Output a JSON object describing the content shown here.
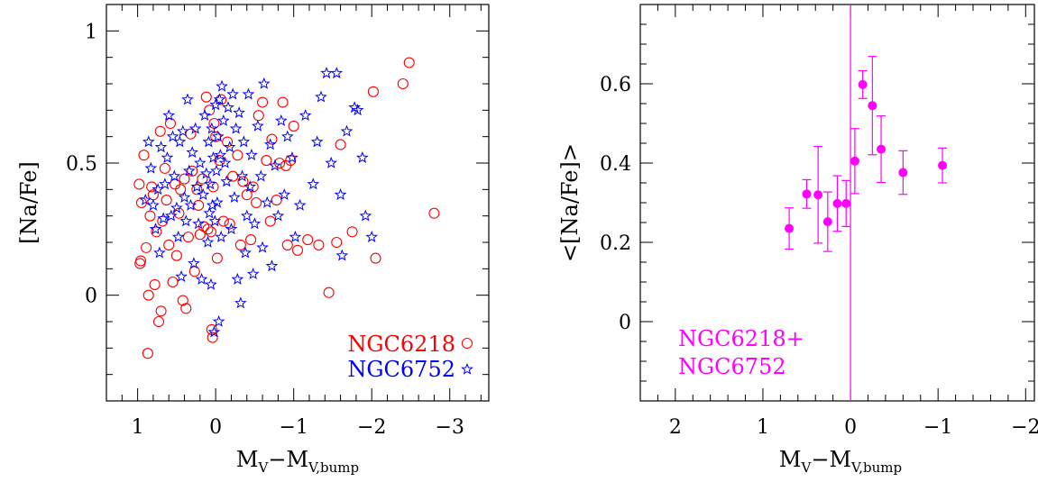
{
  "chart_data": [
    {
      "type": "scatter",
      "xlabel": {
        "main": "M",
        "main_sub": "V",
        "dash": "−M",
        "second_sub": "V,bump"
      },
      "ylabel": "[Na/Fe]",
      "xlim": [
        1.4,
        -3.5
      ],
      "ylim": [
        -0.4,
        1.1
      ],
      "xticks": [
        1,
        0,
        -1,
        -2,
        -3
      ],
      "xtick_labels": [
        "1",
        "0",
        "−1",
        "−2",
        "−3"
      ],
      "yticks": [
        0,
        0.5,
        1
      ],
      "ytick_labels": [
        "0",
        "0.5",
        "1"
      ],
      "legend": [
        {
          "label": "NGC6218",
          "marker": "circle",
          "color": "#ff0000"
        },
        {
          "label": "NGC6752",
          "marker": "star",
          "color": "#0000ff"
        }
      ],
      "series": [
        {
          "name": "NGC6218",
          "marker": "circle",
          "color": "#ff0000",
          "points": [
            [
              0.96,
              0.13
            ],
            [
              0.97,
              0.12
            ],
            [
              0.98,
              0.42
            ],
            [
              0.95,
              0.35
            ],
            [
              0.92,
              0.53
            ],
            [
              0.89,
              0.18
            ],
            [
              0.87,
              -0.22
            ],
            [
              0.86,
              0.0
            ],
            [
              0.84,
              0.3
            ],
            [
              0.82,
              0.41
            ],
            [
              0.8,
              0.38
            ],
            [
              0.78,
              0.04
            ],
            [
              0.76,
              0.24
            ],
            [
              0.73,
              -0.1
            ],
            [
              0.71,
              0.62
            ],
            [
              0.7,
              -0.06
            ],
            [
              0.68,
              0.28
            ],
            [
              0.65,
              0.48
            ],
            [
              0.63,
              0.36
            ],
            [
              0.6,
              0.19
            ],
            [
              0.58,
              0.65
            ],
            [
              0.55,
              0.05
            ],
            [
              0.52,
              0.42
            ],
            [
              0.5,
              0.15
            ],
            [
              0.47,
              0.31
            ],
            [
              0.45,
              0.4
            ],
            [
              0.42,
              -0.02
            ],
            [
              0.4,
              0.44
            ],
            [
              0.38,
              -0.05
            ],
            [
              0.35,
              0.22
            ],
            [
              0.32,
              0.61
            ],
            [
              0.3,
              0.47
            ],
            [
              0.27,
              0.09
            ],
            [
              0.24,
              0.4
            ],
            [
              0.22,
              0.34
            ],
            [
              0.2,
              0.23
            ],
            [
              0.17,
              0.44
            ],
            [
              0.15,
              0.26
            ],
            [
              0.12,
              0.75
            ],
            [
              0.1,
              0.25
            ],
            [
              0.08,
              0.7
            ],
            [
              0.06,
              0.24
            ],
            [
              0.05,
              -0.13
            ],
            [
              0.04,
              -0.16
            ],
            [
              0.03,
              0.41
            ],
            [
              0.02,
              0.65
            ],
            [
              0.0,
              0.6
            ],
            [
              -0.02,
              0.14
            ],
            [
              -0.05,
              0.51
            ],
            [
              -0.07,
              0.74
            ],
            [
              -0.1,
              0.28
            ],
            [
              -0.15,
              0.58
            ],
            [
              -0.18,
              0.27
            ],
            [
              -0.22,
              0.45
            ],
            [
              -0.28,
              0.53
            ],
            [
              -0.32,
              0.19
            ],
            [
              -0.35,
              0.43
            ],
            [
              -0.4,
              0.38
            ],
            [
              -0.45,
              0.21
            ],
            [
              -0.48,
              0.41
            ],
            [
              -0.52,
              0.35
            ],
            [
              -0.55,
              0.68
            ],
            [
              -0.6,
              0.73
            ],
            [
              -0.65,
              0.51
            ],
            [
              -0.7,
              0.28
            ],
            [
              -0.72,
              0.59
            ],
            [
              -0.78,
              0.36
            ],
            [
              -0.82,
              0.5
            ],
            [
              -0.86,
              0.73
            ],
            [
              -0.9,
              0.49
            ],
            [
              -0.92,
              0.19
            ],
            [
              -0.96,
              0.51
            ],
            [
              -1.0,
              0.64
            ],
            [
              -1.05,
              0.17
            ],
            [
              -1.18,
              0.21
            ],
            [
              -1.32,
              0.19
            ],
            [
              -1.45,
              0.01
            ],
            [
              -1.55,
              0.2
            ],
            [
              -1.6,
              0.57
            ],
            [
              -1.75,
              0.24
            ],
            [
              -2.02,
              0.77
            ],
            [
              -2.05,
              0.14
            ],
            [
              -2.4,
              0.8
            ],
            [
              -2.48,
              0.88
            ],
            [
              -2.8,
              0.31
            ]
          ]
        },
        {
          "name": "NGC6752",
          "marker": "star",
          "color": "#0000ff",
          "points": [
            [
              0.9,
              0.36
            ],
            [
              0.86,
              0.58
            ],
            [
              0.83,
              0.48
            ],
            [
              0.8,
              0.34
            ],
            [
              0.77,
              0.25
            ],
            [
              0.74,
              0.4
            ],
            [
              0.72,
              0.16
            ],
            [
              0.7,
              0.56
            ],
            [
              0.67,
              0.29
            ],
            [
              0.65,
              0.42
            ],
            [
              0.62,
              0.52
            ],
            [
              0.6,
              0.68
            ],
            [
              0.57,
              0.3
            ],
            [
              0.55,
              0.6
            ],
            [
              0.53,
              0.45
            ],
            [
              0.5,
              0.33
            ],
            [
              0.48,
              0.22
            ],
            [
              0.46,
              0.58
            ],
            [
              0.44,
              0.07
            ],
            [
              0.42,
              0.62
            ],
            [
              0.4,
              0.37
            ],
            [
              0.38,
              0.28
            ],
            [
              0.36,
              0.74
            ],
            [
              0.34,
              0.47
            ],
            [
              0.32,
              0.34
            ],
            [
              0.3,
              0.54
            ],
            [
              0.28,
              0.12
            ],
            [
              0.26,
              0.63
            ],
            [
              0.24,
              0.41
            ],
            [
              0.22,
              0.27
            ],
            [
              0.2,
              0.5
            ],
            [
              0.18,
              0.06
            ],
            [
              0.16,
              0.38
            ],
            [
              0.14,
              0.68
            ],
            [
              0.12,
              0.46
            ],
            [
              0.1,
              0.2
            ],
            [
              0.09,
              0.58
            ],
            [
              0.08,
              0.31
            ],
            [
              0.07,
              0.42
            ],
            [
              0.06,
              0.04
            ],
            [
              0.05,
              0.63
            ],
            [
              0.04,
              0.34
            ],
            [
              0.03,
              0.52
            ],
            [
              0.02,
              -0.14
            ],
            [
              0.01,
              0.28
            ],
            [
              0.0,
              0.72
            ],
            [
              -0.01,
              0.47
            ],
            [
              -0.02,
              0.35
            ],
            [
              -0.03,
              0.6
            ],
            [
              -0.04,
              -0.1
            ],
            [
              -0.05,
              0.74
            ],
            [
              -0.06,
              0.53
            ],
            [
              -0.07,
              0.22
            ],
            [
              -0.08,
              0.79
            ],
            [
              -0.1,
              0.66
            ],
            [
              -0.12,
              0.5
            ],
            [
              -0.14,
              0.43
            ],
            [
              -0.16,
              0.71
            ],
            [
              -0.18,
              0.56
            ],
            [
              -0.2,
              0.25
            ],
            [
              -0.22,
              0.76
            ],
            [
              -0.24,
              0.37
            ],
            [
              -0.26,
              0.63
            ],
            [
              -0.28,
              0.06
            ],
            [
              -0.3,
              0.69
            ],
            [
              -0.32,
              -0.03
            ],
            [
              -0.34,
              0.45
            ],
            [
              -0.36,
              0.58
            ],
            [
              -0.38,
              0.16
            ],
            [
              -0.4,
              0.3
            ],
            [
              -0.42,
              0.76
            ],
            [
              -0.44,
              0.41
            ],
            [
              -0.46,
              0.53
            ],
            [
              -0.48,
              0.08
            ],
            [
              -0.5,
              0.27
            ],
            [
              -0.54,
              0.64
            ],
            [
              -0.58,
              0.45
            ],
            [
              -0.6,
              0.18
            ],
            [
              -0.62,
              0.8
            ],
            [
              -0.66,
              0.35
            ],
            [
              -0.7,
              0.57
            ],
            [
              -0.72,
              0.11
            ],
            [
              -0.76,
              0.49
            ],
            [
              -0.8,
              0.3
            ],
            [
              -0.84,
              0.66
            ],
            [
              -0.88,
              0.38
            ],
            [
              -0.92,
              0.6
            ],
            [
              -0.98,
              0.52
            ],
            [
              -1.02,
              0.22
            ],
            [
              -1.08,
              0.34
            ],
            [
              -1.15,
              0.68
            ],
            [
              -1.25,
              0.42
            ],
            [
              -1.3,
              0.58
            ],
            [
              -1.35,
              0.75
            ],
            [
              -1.42,
              0.84
            ],
            [
              -1.48,
              0.5
            ],
            [
              -1.55,
              0.84
            ],
            [
              -1.6,
              0.38
            ],
            [
              -1.62,
              0.15
            ],
            [
              -1.68,
              0.62
            ],
            [
              -1.78,
              0.71
            ],
            [
              -1.82,
              0.7
            ],
            [
              -1.88,
              0.52
            ],
            [
              -1.92,
              0.3
            ],
            [
              -2.0,
              0.22
            ]
          ]
        }
      ]
    },
    {
      "type": "scatter",
      "xlabel": {
        "main": "M",
        "main_sub": "V",
        "dash": "−M",
        "second_sub": "V,bump"
      },
      "ylabel": "<[Na/Fe]>",
      "xlim": [
        2.4,
        -2.1
      ],
      "ylim": [
        -0.2,
        0.8
      ],
      "xticks": [
        2,
        1,
        0,
        -1,
        -2
      ],
      "xtick_labels": [
        "2",
        "1",
        "0",
        "−1",
        "−2"
      ],
      "yticks": [
        0,
        0.2,
        0.4,
        0.6
      ],
      "ytick_labels": [
        "0",
        "0.2",
        "0.4",
        "0.6"
      ],
      "vline": 0,
      "legend_text": [
        "NGC6218+",
        "NGC6752"
      ],
      "color": "#ff00ff",
      "series": [
        {
          "name": "NGC6218+NGC6752",
          "marker": "filled-circle",
          "color": "#ff00ff",
          "points": [
            {
              "x": 0.7,
              "y": 0.235,
              "err": 0.052
            },
            {
              "x": 0.5,
              "y": 0.322,
              "err": 0.036
            },
            {
              "x": 0.37,
              "y": 0.32,
              "err": 0.122
            },
            {
              "x": 0.26,
              "y": 0.252,
              "err": 0.075
            },
            {
              "x": 0.15,
              "y": 0.298,
              "err": 0.07
            },
            {
              "x": 0.05,
              "y": 0.298,
              "err": 0.058
            },
            {
              "x": -0.05,
              "y": 0.405,
              "err": 0.082
            },
            {
              "x": -0.14,
              "y": 0.598,
              "err": 0.035
            },
            {
              "x": -0.25,
              "y": 0.545,
              "err": 0.124
            },
            {
              "x": -0.35,
              "y": 0.435,
              "err": 0.084
            },
            {
              "x": -0.6,
              "y": 0.376,
              "err": 0.055
            },
            {
              "x": -1.05,
              "y": 0.394,
              "err": 0.044
            }
          ]
        }
      ]
    }
  ]
}
